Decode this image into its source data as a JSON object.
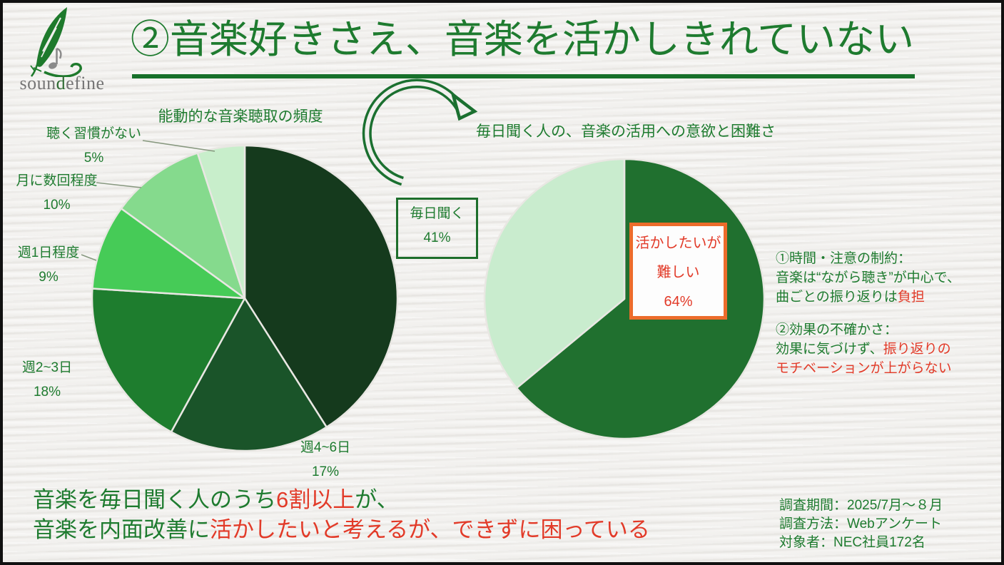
{
  "logo": {
    "pre": "soun",
    "accent": "d",
    "post": "efine"
  },
  "header": {
    "title": "②音楽好きさえ、音楽を活かしきれていない"
  },
  "chart_data": [
    {
      "type": "pie",
      "title": "能動的な音楽聴取の頻度",
      "categories": [
        "毎日聞く",
        "週4~6日",
        "週2~3日",
        "週1日程度",
        "月に数回程度",
        "聴く習慣がない"
      ],
      "values": [
        41,
        17,
        18,
        9,
        10,
        5
      ],
      "value_labels": [
        "41%",
        "17%",
        "18%",
        "9%",
        "10%",
        "5%"
      ],
      "colors": [
        "#153a1d",
        "#1a5429",
        "#1e7d2e",
        "#46cb57",
        "#85da8d",
        "#c8eecb"
      ],
      "start_angle_deg": 0,
      "direction": "clockwise",
      "legend_position": "outside-labels"
    },
    {
      "type": "pie",
      "title": "毎日聞く人の、音楽の活用への意欲と困難さ",
      "categories": [
        "活かしたいが難しい",
        ""
      ],
      "values": [
        64,
        36
      ],
      "value_labels": [
        "64%",
        ""
      ],
      "colors": [
        "#20702f",
        "#c9ecce"
      ],
      "start_angle_deg": 0,
      "direction": "clockwise",
      "legend_position": "callout-box"
    }
  ],
  "hard_callout": {
    "lines": [
      "活かしたいが",
      "難しい",
      "64%"
    ]
  },
  "annotations": [
    {
      "lines": [
        [
          {
            "t": "①時間・注意の制約：",
            "c": "g"
          }
        ],
        [
          {
            "t": "音楽は“ながら聴き”が中心で、",
            "c": "g"
          }
        ],
        [
          {
            "t": "曲ごとの振り返りは",
            "c": "g"
          },
          {
            "t": "負担",
            "c": "r"
          }
        ]
      ]
    },
    {
      "lines": [
        [
          {
            "t": "②効果の不確かさ：",
            "c": "g"
          }
        ],
        [
          {
            "t": "効果に気づけず、",
            "c": "g"
          },
          {
            "t": "振り返りの",
            "c": "r"
          }
        ],
        [
          {
            "t": "モチベーションが上がらない",
            "c": "r"
          }
        ]
      ]
    }
  ],
  "conclusion": {
    "lines": [
      [
        {
          "t": "音楽を毎日聞く人のうち",
          "c": "g"
        },
        {
          "t": "6割以上",
          "c": "r"
        },
        {
          "t": "が、",
          "c": "g"
        }
      ],
      [
        {
          "t": "音楽を内面改善に",
          "c": "g"
        },
        {
          "t": "活かしたいと考えるが、できずに困っている",
          "c": "r"
        }
      ]
    ]
  },
  "survey": {
    "period": "調査期間：2025/7月～８月",
    "method": "調査方法：Webアンケート",
    "subjects": "対象者：NEC社員172名"
  },
  "colors": {
    "green_text": "#1e7b2f",
    "dark_green": "#17702a",
    "red_text": "#e23a28",
    "orange_border": "#ec6c2b",
    "green_box_border": "#1d6e2b",
    "arrow_green": "#1b7030",
    "slice_stroke": "#e9e7e3",
    "background": "#f1f0ee"
  }
}
